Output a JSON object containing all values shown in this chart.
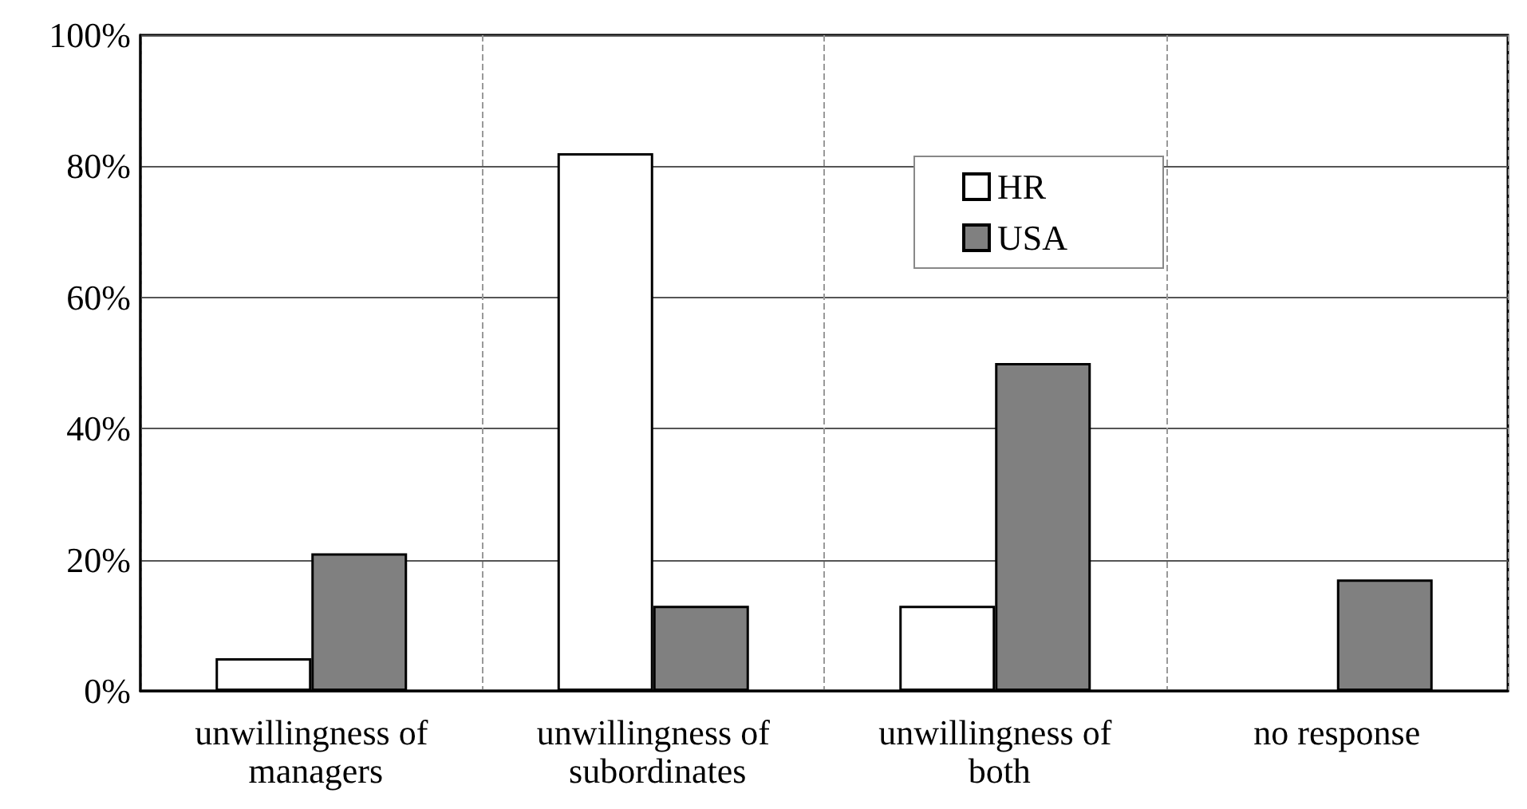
{
  "chart_data": {
    "type": "bar",
    "categories": [
      "unwillingness of managers",
      "unwillingness of subordinates",
      "unwillingness of both",
      "no response"
    ],
    "series": [
      {
        "name": "HR",
        "color": "#ffffff",
        "values": [
          5,
          82,
          13,
          null
        ]
      },
      {
        "name": "USA",
        "color": "#808080",
        "values": [
          21,
          13,
          50,
          17
        ]
      }
    ],
    "ylim": [
      0,
      100
    ],
    "yticks": [
      {
        "value": 0,
        "label": "0%"
      },
      {
        "value": 20,
        "label": "20%"
      },
      {
        "value": 40,
        "label": "40%"
      },
      {
        "value": 60,
        "label": "60%"
      },
      {
        "value": 80,
        "label": "80%"
      },
      {
        "value": 100,
        "label": "100%"
      }
    ],
    "grid": true,
    "legend": "top right"
  }
}
